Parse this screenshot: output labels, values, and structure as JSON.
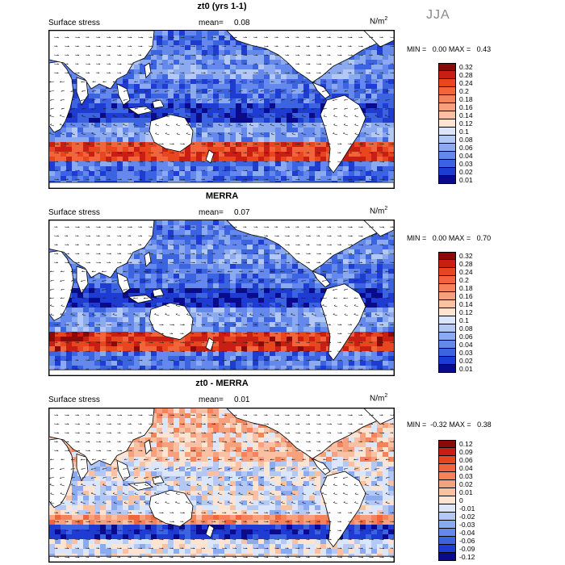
{
  "season": "JJA",
  "colors": {
    "land": "#ffffff",
    "coast": "#000000",
    "arrow": "#222222"
  },
  "panels": [
    {
      "title": "zt0 (yrs 1-1)",
      "field_label": "Surface stress",
      "mean_label": "mean=",
      "mean_value": "0.08",
      "unit": "N/m",
      "unit_sup": "2",
      "min_label": "MIN =",
      "min_value": "0.00",
      "max_label": "MAX =",
      "max_value": "0.43",
      "colorbar": {
        "labels": [
          "0.32",
          "0.28",
          "0.24",
          "0.2",
          "0.18",
          "0.16",
          "0.14",
          "0.12",
          "0.1",
          "0.08",
          "0.06",
          "0.04",
          "0.03",
          "0.02",
          "0.01"
        ],
        "colors": [
          "#8a0a0a",
          "#c81e14",
          "#e8461e",
          "#f2643c",
          "#f5825a",
          "#f7a07e",
          "#f9c0a4",
          "#fde3d2",
          "#dbe6fb",
          "#b4c8f5",
          "#8caaf0",
          "#6488eb",
          "#3c64e1",
          "#1e3cd2",
          "#0a0a8c"
        ]
      }
    },
    {
      "title": "MERRA",
      "field_label": "Surface stress",
      "mean_label": "mean=",
      "mean_value": "0.07",
      "unit": "N/m",
      "unit_sup": "2",
      "min_label": "MIN =",
      "min_value": "0.00",
      "max_label": "MAX =",
      "max_value": "0.70",
      "colorbar": {
        "labels": [
          "0.32",
          "0.28",
          "0.24",
          "0.2",
          "0.18",
          "0.16",
          "0.14",
          "0.12",
          "0.1",
          "0.08",
          "0.06",
          "0.04",
          "0.03",
          "0.02",
          "0.01"
        ],
        "colors": [
          "#8a0a0a",
          "#c81e14",
          "#e8461e",
          "#f2643c",
          "#f5825a",
          "#f7a07e",
          "#f9c0a4",
          "#fde3d2",
          "#dbe6fb",
          "#b4c8f5",
          "#8caaf0",
          "#6488eb",
          "#3c64e1",
          "#1e3cd2",
          "#0a0a8c"
        ]
      }
    },
    {
      "title": "zt0 - MERRA",
      "field_label": "Surface stress",
      "mean_label": "mean=",
      "mean_value": "0.01",
      "unit": "N/m",
      "unit_sup": "2",
      "min_label": "MIN =",
      "min_value": "-0.32",
      "max_label": "MAX =",
      "max_value": "0.38",
      "colorbar": {
        "labels": [
          "0.12",
          "0.09",
          "0.06",
          "0.04",
          "0.03",
          "0.02",
          "0.01",
          "0",
          "-0.01",
          "-0.02",
          "-0.03",
          "-0.04",
          "-0.06",
          "-0.09",
          "-0.12"
        ],
        "colors": [
          "#8a0a0a",
          "#c81e14",
          "#e8461e",
          "#f2643c",
          "#f5825a",
          "#f7a07e",
          "#f9c0a4",
          "#fde3d2",
          "#dbe6fb",
          "#b4c8f5",
          "#8caaf0",
          "#6488eb",
          "#3c64e1",
          "#1e3cd2",
          "#0a0a8c"
        ]
      }
    }
  ]
}
